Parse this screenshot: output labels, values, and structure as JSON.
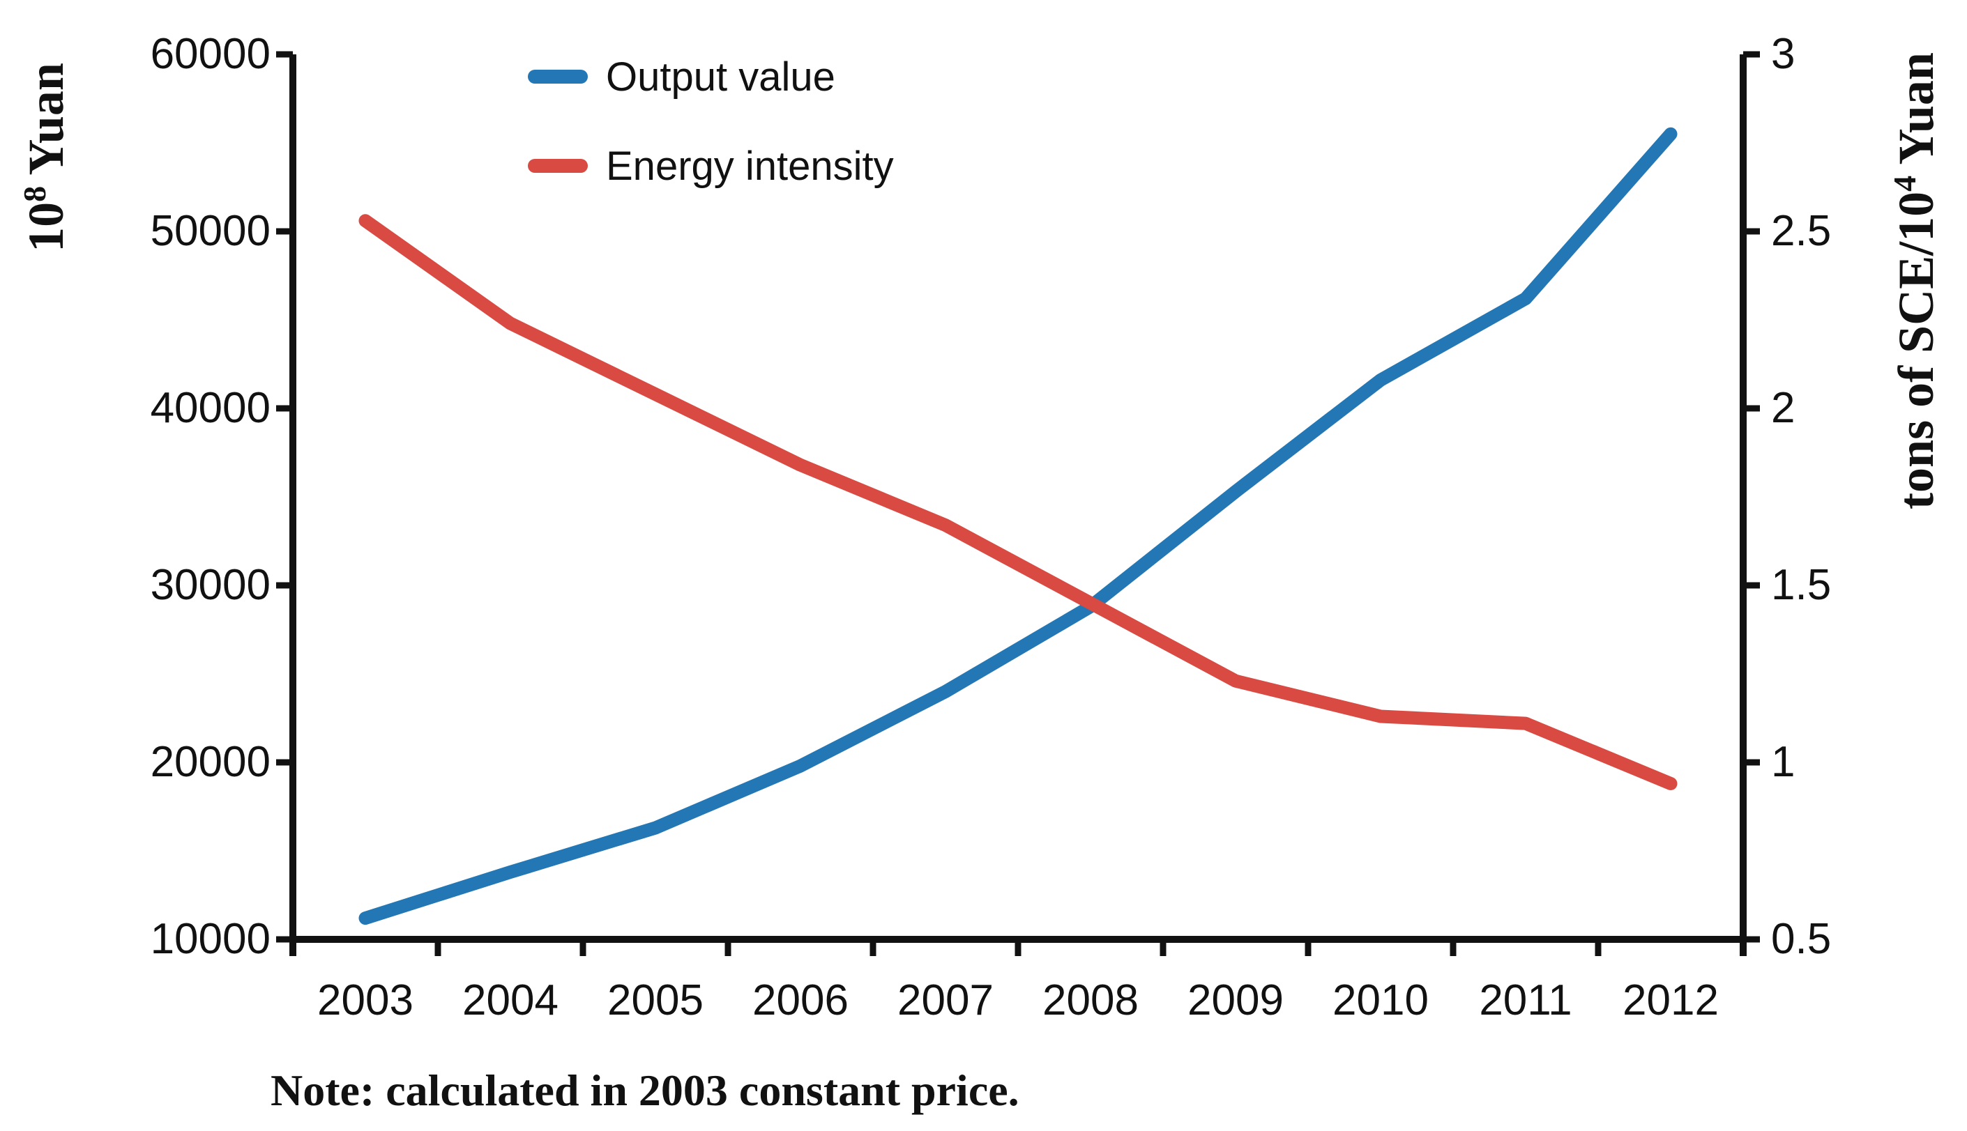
{
  "chart_data": {
    "type": "line",
    "title": "",
    "x": [
      2003,
      2004,
      2005,
      2006,
      2007,
      2008,
      2009,
      2010,
      2011,
      2012
    ],
    "series": [
      {
        "name": "Output value",
        "axis": "left",
        "color": "#2377B4",
        "values": [
          11200,
          13800,
          16300,
          19800,
          24000,
          28800,
          35300,
          41600,
          46200,
          55500
        ]
      },
      {
        "name": "Energy intensity",
        "axis": "right",
        "color": "#D94A43",
        "values": [
          2.53,
          2.24,
          2.04,
          1.84,
          1.67,
          1.45,
          1.23,
          1.13,
          1.11,
          0.94
        ]
      }
    ],
    "left_axis": {
      "title_base": "10",
      "title_sup": "8",
      "title_rest": " Yuan",
      "min": 10000,
      "max": 60000,
      "ticks": [
        "60000",
        "50000",
        "40000",
        "30000",
        "20000",
        "10000"
      ]
    },
    "right_axis": {
      "title_base": "tons of SCE/10",
      "title_sup": "4",
      "title_rest": " Yuan",
      "min": 0.5,
      "max": 3,
      "ticks": [
        "3",
        "2.5",
        "2",
        "1.5",
        "1",
        "0.5"
      ]
    },
    "x_axis": {
      "tick_labels": [
        "2003",
        "2004",
        "2005",
        "2006",
        "2007",
        "2008",
        "2009",
        "2010",
        "2011",
        "2012"
      ]
    },
    "legend_position": "top-center",
    "grid": false,
    "note": "Note: calculated in 2003 constant price.",
    "axis_color": "#111111"
  }
}
